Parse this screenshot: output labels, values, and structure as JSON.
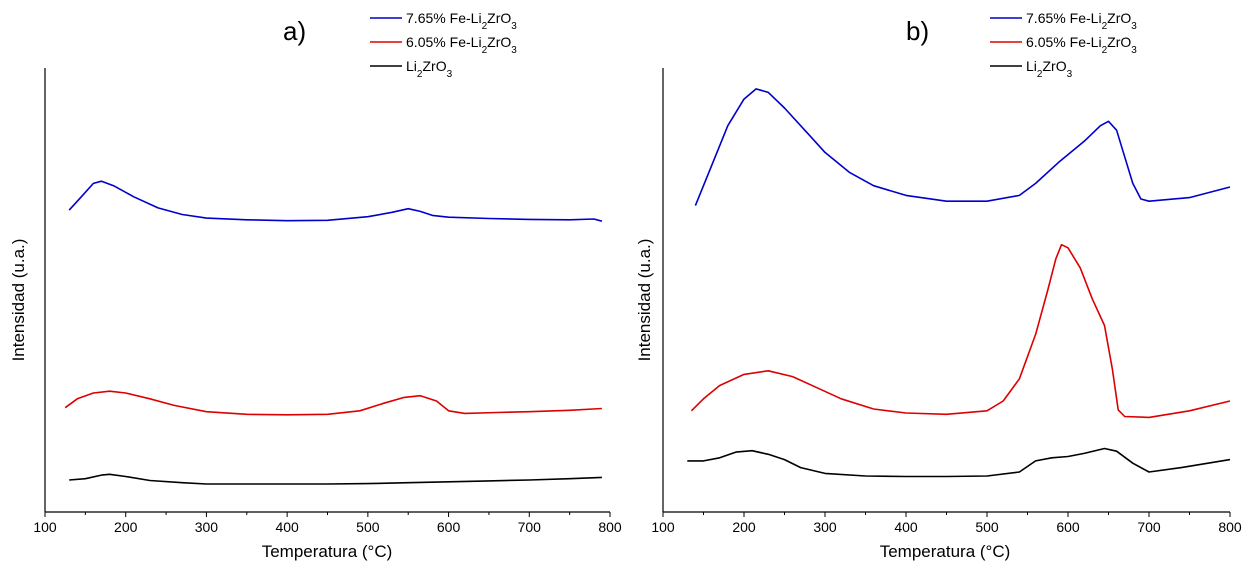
{
  "chart_data": [
    {
      "type": "line",
      "panel_label": "a)",
      "xlabel": "Temperatura (°C)",
      "ylabel": "Intensidad (u.a.)",
      "xlim": [
        100,
        800
      ],
      "x_ticks": [
        "100",
        "200",
        "300",
        "400",
        "500",
        "600",
        "700",
        "800"
      ],
      "y_ticks_labeled": false,
      "legend_position": "top-right",
      "series": [
        {
          "name": "7.65% Fe-Li2ZrO3",
          "color": "#0000cc",
          "points": [
            [
              130,
              0.68
            ],
            [
              145,
              0.71
            ],
            [
              160,
              0.74
            ],
            [
              170,
              0.745
            ],
            [
              185,
              0.735
            ],
            [
              210,
              0.71
            ],
            [
              240,
              0.685
            ],
            [
              270,
              0.67
            ],
            [
              300,
              0.662
            ],
            [
              350,
              0.658
            ],
            [
              400,
              0.656
            ],
            [
              450,
              0.657
            ],
            [
              500,
              0.665
            ],
            [
              530,
              0.675
            ],
            [
              550,
              0.683
            ],
            [
              565,
              0.677
            ],
            [
              580,
              0.668
            ],
            [
              600,
              0.664
            ],
            [
              650,
              0.661
            ],
            [
              700,
              0.659
            ],
            [
              750,
              0.658
            ],
            [
              780,
              0.66
            ],
            [
              790,
              0.655
            ]
          ]
        },
        {
          "name": "6.05% Fe-Li2ZrO3",
          "color": "#dd0000",
          "points": [
            [
              125,
              0.235
            ],
            [
              140,
              0.255
            ],
            [
              160,
              0.268
            ],
            [
              180,
              0.272
            ],
            [
              200,
              0.268
            ],
            [
              230,
              0.255
            ],
            [
              260,
              0.24
            ],
            [
              300,
              0.226
            ],
            [
              350,
              0.22
            ],
            [
              400,
              0.219
            ],
            [
              450,
              0.22
            ],
            [
              490,
              0.228
            ],
            [
              520,
              0.245
            ],
            [
              545,
              0.258
            ],
            [
              565,
              0.262
            ],
            [
              585,
              0.25
            ],
            [
              600,
              0.228
            ],
            [
              620,
              0.222
            ],
            [
              660,
              0.224
            ],
            [
              700,
              0.226
            ],
            [
              750,
              0.229
            ],
            [
              790,
              0.233
            ]
          ]
        },
        {
          "name": "Li2ZrO3",
          "color": "#000000",
          "points": [
            [
              130,
              0.072
            ],
            [
              150,
              0.075
            ],
            [
              170,
              0.083
            ],
            [
              180,
              0.085
            ],
            [
              200,
              0.08
            ],
            [
              230,
              0.071
            ],
            [
              270,
              0.066
            ],
            [
              300,
              0.063
            ],
            [
              350,
              0.063
            ],
            [
              400,
              0.063
            ],
            [
              450,
              0.063
            ],
            [
              500,
              0.064
            ],
            [
              550,
              0.066
            ],
            [
              600,
              0.068
            ],
            [
              650,
              0.07
            ],
            [
              700,
              0.072
            ],
            [
              750,
              0.075
            ],
            [
              790,
              0.078
            ]
          ]
        }
      ]
    },
    {
      "type": "line",
      "panel_label": "b)",
      "xlabel": "Temperatura (°C)",
      "ylabel": "Intensidad (u.a.)",
      "xlim": [
        100,
        800
      ],
      "x_ticks": [
        "100",
        "200",
        "300",
        "400",
        "500",
        "600",
        "700",
        "800"
      ],
      "y_ticks_labeled": false,
      "legend_position": "top-right",
      "series": [
        {
          "name": "7.65% Fe-Li2ZrO3",
          "color": "#0000cc",
          "points": [
            [
              140,
              0.69
            ],
            [
              160,
              0.78
            ],
            [
              180,
              0.87
            ],
            [
              200,
              0.93
            ],
            [
              215,
              0.953
            ],
            [
              230,
              0.945
            ],
            [
              250,
              0.91
            ],
            [
              280,
              0.85
            ],
            [
              300,
              0.81
            ],
            [
              330,
              0.765
            ],
            [
              360,
              0.735
            ],
            [
              400,
              0.713
            ],
            [
              450,
              0.7
            ],
            [
              500,
              0.7
            ],
            [
              540,
              0.713
            ],
            [
              560,
              0.74
            ],
            [
              590,
              0.79
            ],
            [
              620,
              0.835
            ],
            [
              640,
              0.87
            ],
            [
              650,
              0.88
            ],
            [
              660,
              0.86
            ],
            [
              670,
              0.8
            ],
            [
              680,
              0.74
            ],
            [
              690,
              0.705
            ],
            [
              700,
              0.7
            ],
            [
              750,
              0.708
            ],
            [
              800,
              0.732
            ]
          ]
        },
        {
          "name": "6.05% Fe-Li2ZrO3",
          "color": "#dd0000",
          "points": [
            [
              135,
              0.228
            ],
            [
              150,
              0.255
            ],
            [
              170,
              0.285
            ],
            [
              200,
              0.31
            ],
            [
              230,
              0.318
            ],
            [
              260,
              0.305
            ],
            [
              290,
              0.28
            ],
            [
              320,
              0.255
            ],
            [
              360,
              0.232
            ],
            [
              400,
              0.223
            ],
            [
              450,
              0.22
            ],
            [
              500,
              0.228
            ],
            [
              520,
              0.25
            ],
            [
              540,
              0.3
            ],
            [
              560,
              0.4
            ],
            [
              575,
              0.5
            ],
            [
              585,
              0.57
            ],
            [
              592,
              0.602
            ],
            [
              600,
              0.595
            ],
            [
              615,
              0.55
            ],
            [
              630,
              0.48
            ],
            [
              645,
              0.42
            ],
            [
              655,
              0.32
            ],
            [
              662,
              0.23
            ],
            [
              670,
              0.215
            ],
            [
              700,
              0.213
            ],
            [
              750,
              0.228
            ],
            [
              800,
              0.25
            ]
          ]
        },
        {
          "name": "Li2ZrO3",
          "color": "#000000",
          "points": [
            [
              130,
              0.115
            ],
            [
              150,
              0.115
            ],
            [
              170,
              0.122
            ],
            [
              190,
              0.135
            ],
            [
              210,
              0.138
            ],
            [
              230,
              0.13
            ],
            [
              250,
              0.118
            ],
            [
              270,
              0.1
            ],
            [
              300,
              0.087
            ],
            [
              350,
              0.081
            ],
            [
              400,
              0.08
            ],
            [
              450,
              0.08
            ],
            [
              500,
              0.081
            ],
            [
              540,
              0.09
            ],
            [
              560,
              0.115
            ],
            [
              580,
              0.122
            ],
            [
              600,
              0.125
            ],
            [
              620,
              0.132
            ],
            [
              645,
              0.143
            ],
            [
              660,
              0.137
            ],
            [
              680,
              0.11
            ],
            [
              700,
              0.09
            ],
            [
              740,
              0.1
            ],
            [
              800,
              0.118
            ]
          ]
        }
      ]
    }
  ]
}
